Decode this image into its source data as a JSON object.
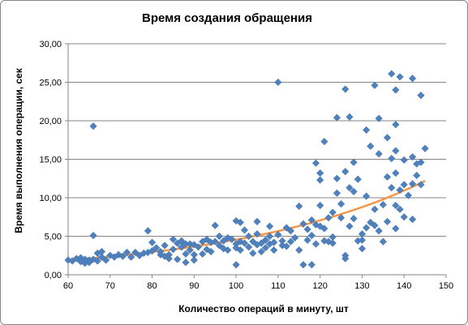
{
  "chart_data": {
    "type": "scatter",
    "title": "Время создания обращения",
    "xlabel": "Количество операций в минуту, шт",
    "ylabel": "Время выполнения операции, сек",
    "xlim": [
      60,
      150
    ],
    "ylim": [
      0,
      30
    ],
    "x_ticks": [
      "60",
      "70",
      "80",
      "90",
      "100",
      "110",
      "120",
      "130",
      "140",
      "150"
    ],
    "y_ticks": [
      "0,00",
      "5,00",
      "10,00",
      "15,00",
      "20,00",
      "25,00",
      "30,00"
    ],
    "grid": "horizontal",
    "legend": "none",
    "colors": {
      "points": "#4F81BD",
      "trend": "#F79646",
      "grid": "#868686"
    },
    "trendline": {
      "type": "exponential",
      "from": [
        60,
        1.9
      ],
      "to": [
        145,
        12.2
      ]
    },
    "series": [
      {
        "values": [
          [
            60,
            1.9
          ],
          [
            61,
            1.8
          ],
          [
            62,
            2.1
          ],
          [
            63,
            2.2
          ],
          [
            63,
            1.7
          ],
          [
            64,
            1.5
          ],
          [
            64,
            2.0
          ],
          [
            65,
            1.6
          ],
          [
            65,
            1.9
          ],
          [
            66,
            19.3
          ],
          [
            66,
            5.1
          ],
          [
            66,
            2.0
          ],
          [
            67,
            2.8
          ],
          [
            67,
            1.8
          ],
          [
            68,
            3.0
          ],
          [
            68,
            2.3
          ],
          [
            69,
            1.9
          ],
          [
            70,
            2.5
          ],
          [
            71,
            2.3
          ],
          [
            72,
            2.6
          ],
          [
            73,
            2.4
          ],
          [
            74,
            2.9
          ],
          [
            75,
            2.3
          ],
          [
            76,
            2.9
          ],
          [
            77,
            2.5
          ],
          [
            78,
            2.8
          ],
          [
            79,
            5.7
          ],
          [
            79,
            2.9
          ],
          [
            80,
            4.2
          ],
          [
            80,
            3.1
          ],
          [
            81,
            3.5
          ],
          [
            82,
            2.6
          ],
          [
            82,
            3.0
          ],
          [
            83,
            2.4
          ],
          [
            83,
            3.8
          ],
          [
            84,
            2.6
          ],
          [
            84,
            2.1
          ],
          [
            85,
            4.6
          ],
          [
            85,
            3.3
          ],
          [
            86,
            4.1
          ],
          [
            86,
            2.0
          ],
          [
            87,
            3.6
          ],
          [
            87,
            4.4
          ],
          [
            88,
            2.7
          ],
          [
            88,
            1.6
          ],
          [
            88,
            4.0
          ],
          [
            89,
            3.2
          ],
          [
            89,
            4.0
          ],
          [
            90,
            2.6
          ],
          [
            90,
            3.9
          ],
          [
            90,
            1.9
          ],
          [
            91,
            3.6
          ],
          [
            92,
            4.3
          ],
          [
            92,
            2.7
          ],
          [
            93,
            3.3
          ],
          [
            93,
            4.6
          ],
          [
            94,
            3.0
          ],
          [
            94,
            4.2
          ],
          [
            95,
            6.4
          ],
          [
            95,
            4.3
          ],
          [
            96,
            3.8
          ],
          [
            96,
            5.0
          ],
          [
            97,
            4.4
          ],
          [
            97,
            3.4
          ],
          [
            98,
            4.8
          ],
          [
            98,
            3.2
          ],
          [
            99,
            4.6
          ],
          [
            100,
            7.0
          ],
          [
            100,
            1.3
          ],
          [
            100,
            4.0
          ],
          [
            100,
            3.5
          ],
          [
            101,
            4.3
          ],
          [
            101,
            6.8
          ],
          [
            101,
            3.2
          ],
          [
            102,
            5.8
          ],
          [
            102,
            4.1
          ],
          [
            103,
            3.6
          ],
          [
            103,
            5.0
          ],
          [
            104,
            4.3
          ],
          [
            104,
            2.8
          ],
          [
            105,
            3.9
          ],
          [
            105,
            5.3
          ],
          [
            105,
            6.9
          ],
          [
            106,
            4.1
          ],
          [
            106,
            3.0
          ],
          [
            107,
            4.5
          ],
          [
            107,
            3.5
          ],
          [
            108,
            4.0
          ],
          [
            108,
            6.3
          ],
          [
            108,
            5.0
          ],
          [
            109,
            4.2
          ],
          [
            109,
            3.2
          ],
          [
            110,
            25.0
          ],
          [
            110,
            5.2
          ],
          [
            111,
            3.8
          ],
          [
            111,
            4.4
          ],
          [
            112,
            6.1
          ],
          [
            112,
            3.7
          ],
          [
            113,
            5.7
          ],
          [
            113,
            4.3
          ],
          [
            114,
            4.8
          ],
          [
            115,
            8.9
          ],
          [
            115,
            3.2
          ],
          [
            116,
            1.3
          ],
          [
            116,
            6.6
          ],
          [
            117,
            5.9
          ],
          [
            117,
            4.5
          ],
          [
            118,
            1.3
          ],
          [
            118,
            5.1
          ],
          [
            118,
            7.1
          ],
          [
            119,
            14.5
          ],
          [
            119,
            6.5
          ],
          [
            119,
            4.0
          ],
          [
            120,
            13.2
          ],
          [
            120,
            12.3
          ],
          [
            120,
            9.0
          ],
          [
            120,
            6.3
          ],
          [
            121,
            17.3
          ],
          [
            121,
            4.4
          ],
          [
            121,
            6.0
          ],
          [
            122,
            4.3
          ],
          [
            122,
            7.4
          ],
          [
            123,
            8.1
          ],
          [
            123,
            4.9
          ],
          [
            123,
            4.1
          ],
          [
            124,
            12.5
          ],
          [
            124,
            20.4
          ],
          [
            124,
            10.6
          ],
          [
            125,
            9.2
          ],
          [
            125,
            7.4
          ],
          [
            126,
            24.1
          ],
          [
            126,
            13.4
          ],
          [
            126,
            2.5
          ],
          [
            126,
            2.1
          ],
          [
            127,
            20.5
          ],
          [
            127,
            11.3
          ],
          [
            127,
            6.3
          ],
          [
            128,
            14.6
          ],
          [
            128,
            10.8
          ],
          [
            128,
            7.3
          ],
          [
            129,
            12.4
          ],
          [
            129,
            4.4
          ],
          [
            130,
            4.5
          ],
          [
            130,
            5.3
          ],
          [
            130,
            3.4
          ],
          [
            131,
            18.8
          ],
          [
            131,
            10.2
          ],
          [
            131,
            6.1
          ],
          [
            132,
            16.7
          ],
          [
            132,
            6.8
          ],
          [
            133,
            24.6
          ],
          [
            133,
            8.5
          ],
          [
            133,
            6.4
          ],
          [
            134,
            20.3
          ],
          [
            134,
            15.7
          ],
          [
            134,
            5.7
          ],
          [
            135,
            9.1
          ],
          [
            135,
            4.3
          ],
          [
            136,
            17.8
          ],
          [
            136,
            12.7
          ],
          [
            136,
            6.9
          ],
          [
            137,
            26.1
          ],
          [
            137,
            15.1
          ],
          [
            137,
            11.3
          ],
          [
            138,
            24.0
          ],
          [
            138,
            19.5
          ],
          [
            138,
            16.1
          ],
          [
            138,
            13.2
          ],
          [
            138,
            9.0
          ],
          [
            138,
            6.0
          ],
          [
            139,
            25.7
          ],
          [
            139,
            11.0
          ],
          [
            139,
            8.5
          ],
          [
            140,
            14.9
          ],
          [
            140,
            11.7
          ],
          [
            140,
            7.5
          ],
          [
            141,
            10.3
          ],
          [
            142,
            25.5
          ],
          [
            142,
            15.3
          ],
          [
            142,
            11.8
          ],
          [
            142,
            7.2
          ],
          [
            143,
            14.4
          ],
          [
            143,
            12.9
          ],
          [
            144,
            23.3
          ],
          [
            144,
            11.7
          ],
          [
            144,
            14.6
          ],
          [
            145,
            16.4
          ]
        ]
      }
    ]
  }
}
